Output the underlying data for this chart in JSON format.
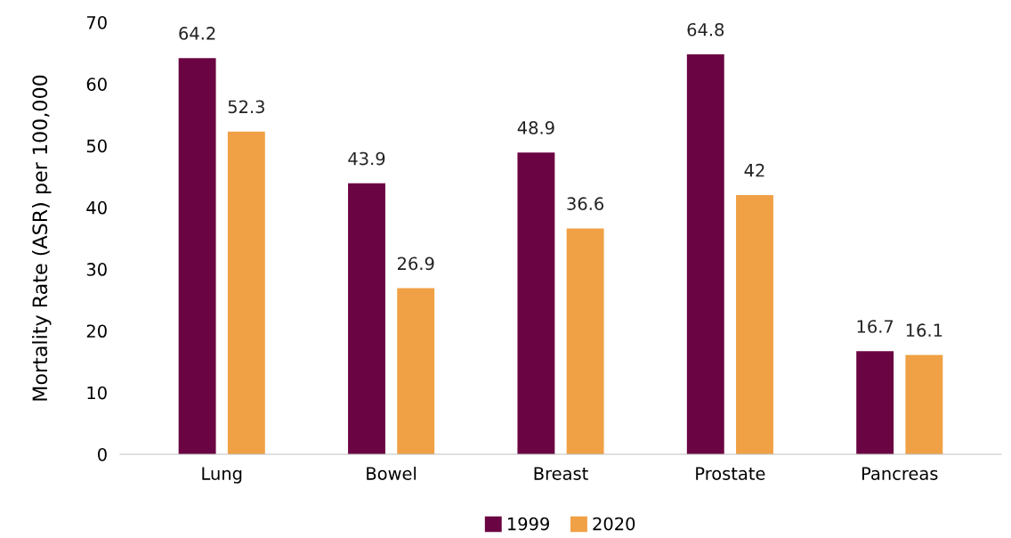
{
  "chart_data": {
    "type": "bar",
    "ylabel": "Mortality Rate (ASR) per 100,000",
    "categories": [
      "Lung",
      "Bowel",
      "Breast",
      "Prostate",
      "Pancreas"
    ],
    "series": [
      {
        "name": "1999",
        "color": "#6b0442",
        "values": [
          64.2,
          43.9,
          48.9,
          64.8,
          16.7
        ]
      },
      {
        "name": "2020",
        "color": "#f0a045",
        "values": [
          52.3,
          26.9,
          36.6,
          42,
          16.1
        ]
      }
    ],
    "ylim": [
      0,
      70
    ],
    "yticks": [
      0,
      10,
      20,
      30,
      40,
      50,
      60,
      70
    ],
    "data_labels": true,
    "grid": false,
    "legend": "bottom"
  }
}
